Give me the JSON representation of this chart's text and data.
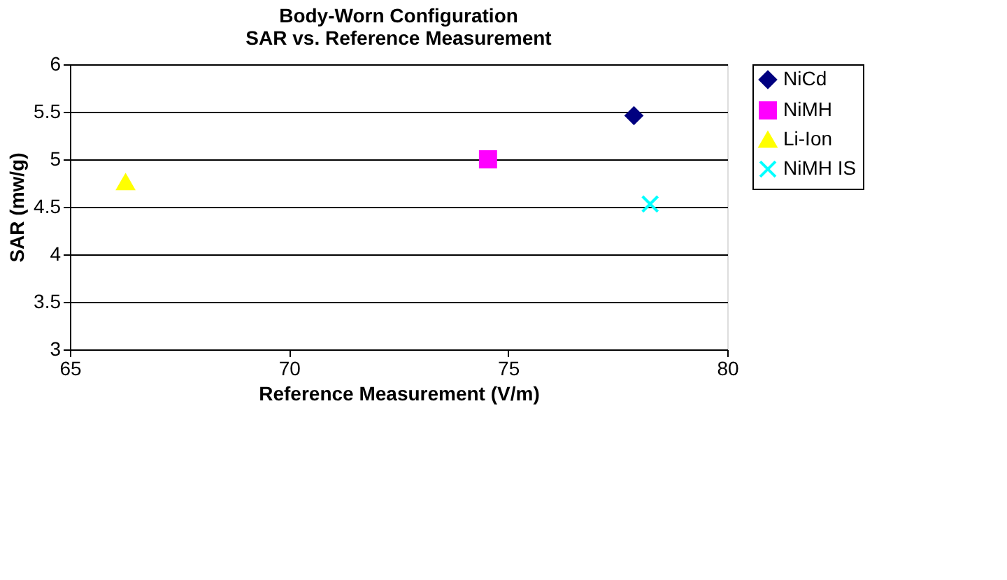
{
  "chart_data": {
    "type": "scatter",
    "title": "Body-Worn Configuration\nSAR vs. Reference Measurement",
    "xlabel": "Reference Measurement (V/m)",
    "ylabel": "SAR (mw/g)",
    "xlim": [
      65,
      80
    ],
    "xticks": [
      65,
      70,
      75,
      80
    ],
    "ylim": [
      3,
      6
    ],
    "yticks": [
      3,
      3.5,
      4,
      4.5,
      5,
      5.5,
      6
    ],
    "grid": "y",
    "legend": "right",
    "series": [
      {
        "name": "NiCd",
        "color": "#000080",
        "marker": "diamond",
        "x": [
          77.87
        ],
        "values": [
          5.46
        ]
      },
      {
        "name": "NiMH",
        "color": "#ff00ff",
        "marker": "square",
        "x": [
          74.54
        ],
        "values": [
          5.0
        ]
      },
      {
        "name": "Li-Ion",
        "color": "#ffff00",
        "marker": "triangle",
        "x": [
          66.27
        ],
        "values": [
          4.76
        ]
      },
      {
        "name": "NiMH IS",
        "color": "#00ffff",
        "marker": "cross",
        "x": [
          78.24
        ],
        "values": [
          4.53
        ]
      }
    ]
  }
}
